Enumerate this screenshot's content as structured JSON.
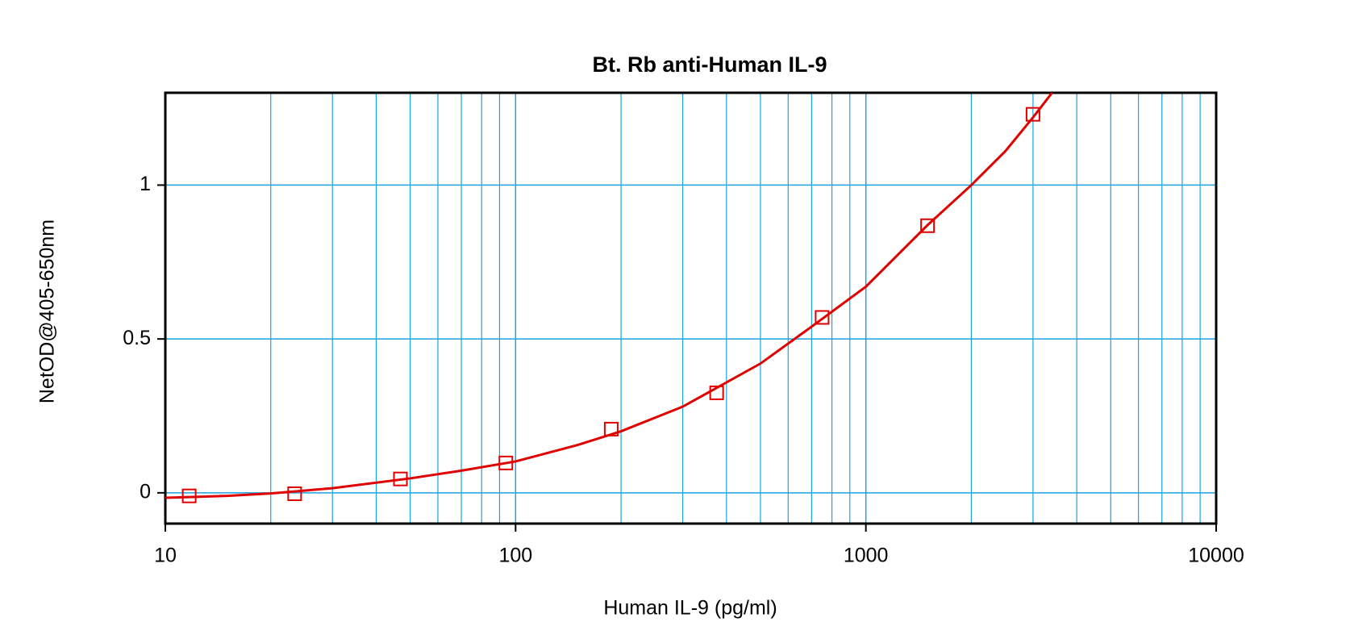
{
  "chart_data": {
    "type": "scatter",
    "title": "Bt. Rb anti-Human IL-9",
    "x_label": "Human IL-9 (pg/ml)",
    "y_label": "NetOD@405-650nm",
    "xscale": "log",
    "xlim": [
      10,
      10000
    ],
    "xticks": [
      10,
      100,
      1000,
      10000
    ],
    "xgrid": [
      20,
      30,
      40,
      50,
      60,
      70,
      80,
      90,
      200,
      300,
      400,
      500,
      600,
      700,
      800,
      900,
      2000,
      3000,
      4000,
      5000,
      6000,
      7000,
      8000,
      9000
    ],
    "ylim": [
      -0.1,
      1.3
    ],
    "yticks": [
      0,
      0.5,
      1
    ],
    "grid": true,
    "series": [
      {
        "color": "#e00000",
        "marker": "square",
        "x": [
          11.7,
          23.4,
          46.9,
          93.8,
          187.5,
          375,
          750,
          1500,
          3000
        ],
        "values": [
          -0.01,
          -0.003,
          0.045,
          0.097,
          0.207,
          0.325,
          0.57,
          0.868,
          1.23
        ]
      },
      {
        "color": "#e00000",
        "line": true,
        "x": [
          10,
          15,
          20,
          30,
          50,
          70,
          100,
          150,
          200,
          300,
          500,
          700,
          1000,
          1500,
          2000,
          2500,
          3000,
          3400
        ],
        "values": [
          -0.016,
          -0.01,
          -0.002,
          0.015,
          0.047,
          0.072,
          0.102,
          0.155,
          0.2,
          0.28,
          0.42,
          0.54,
          0.67,
          0.87,
          1.0,
          1.11,
          1.22,
          1.3
        ]
      }
    ]
  }
}
